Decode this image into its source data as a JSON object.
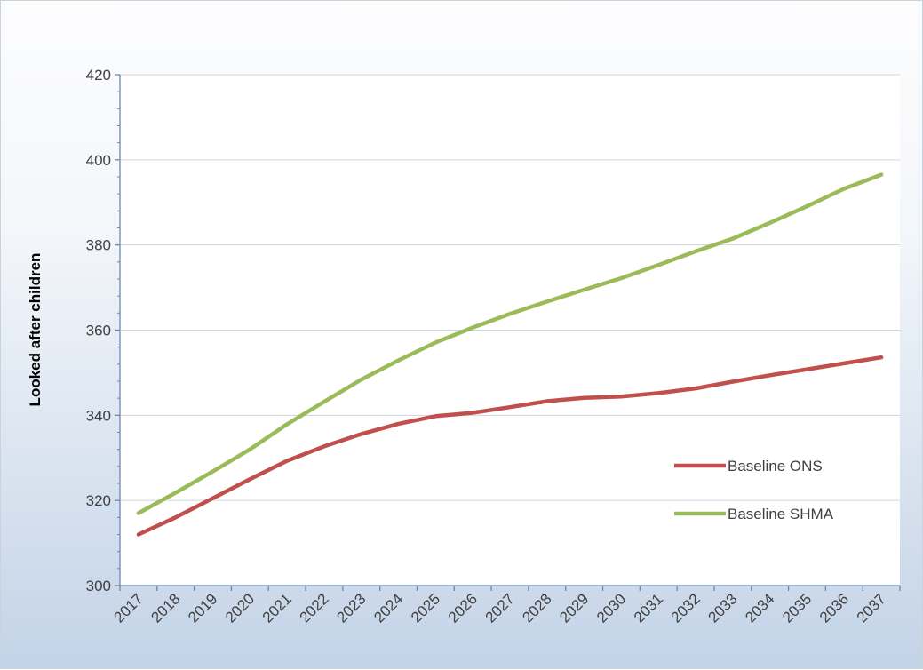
{
  "chart_data": {
    "type": "line",
    "title": "",
    "xlabel": "",
    "ylabel": "Looked after children",
    "x": [
      "2017",
      "2018",
      "2019",
      "2020",
      "2021",
      "2022",
      "2023",
      "2024",
      "2025",
      "2026",
      "2027",
      "2028",
      "2029",
      "2030",
      "2031",
      "2032",
      "2033",
      "2034",
      "2035",
      "2036",
      "2037"
    ],
    "ylim": [
      300,
      420
    ],
    "yticks": [
      300,
      320,
      340,
      360,
      380,
      400,
      420
    ],
    "grid": true,
    "legend_position": "right",
    "series": [
      {
        "name": "Baseline ONS",
        "color": "#c0504d",
        "values": [
          312,
          316,
          320.5,
          325,
          329.3,
          332.7,
          335.6,
          338,
          339.8,
          340.6,
          341.9,
          343.3,
          344.1,
          344.4,
          345.2,
          346.3,
          347.9,
          349.4,
          350.8,
          352.2,
          353.6
        ]
      },
      {
        "name": "Baseline SHMA",
        "color": "#9bbb59",
        "values": [
          317,
          321.8,
          326.8,
          332,
          337.9,
          343.2,
          348.4,
          352.9,
          357.1,
          360.6,
          363.8,
          366.7,
          369.5,
          372.2,
          375.3,
          378.5,
          381.5,
          385.2,
          389.1,
          393.2,
          396.5
        ]
      }
    ]
  }
}
